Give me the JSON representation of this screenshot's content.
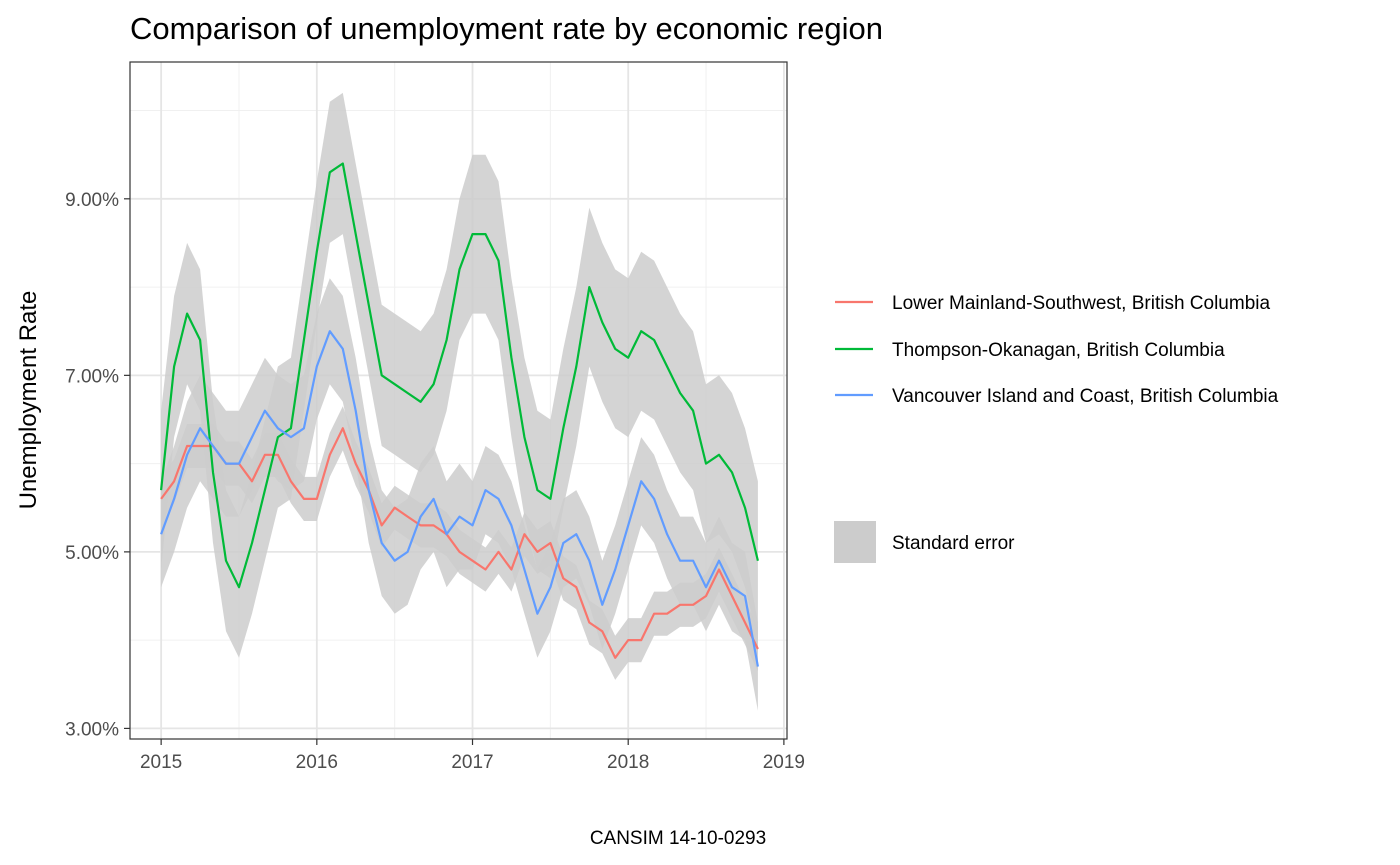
{
  "chart_data": {
    "type": "line",
    "title": "Comparison of unemployment rate by economic region",
    "xlabel": "",
    "ylabel": "Unemployment Rate",
    "caption": "CANSIM 14-10-0293",
    "xlim": [
      2014.8,
      2019.02
    ],
    "ylim": [
      2.88,
      10.55
    ],
    "x_ticks": [
      2015,
      2016,
      2017,
      2018,
      2019
    ],
    "x_tick_labels": [
      "2015",
      "2016",
      "2017",
      "2018",
      "2019"
    ],
    "y_ticks": [
      3,
      5,
      7,
      9
    ],
    "y_tick_labels": [
      "3.00%",
      "5.00%",
      "7.00%",
      "9.00%"
    ],
    "grid": true,
    "legend_position": "right",
    "ribbon_label": "Standard error",
    "ribbon_color": "#cccccc",
    "series": [
      {
        "name": "Lower Mainland-Southwest, British Columbia",
        "color": "#F8766D",
        "values": [
          5.6,
          5.8,
          6.2,
          6.2,
          6.2,
          6.0,
          6.0,
          5.8,
          6.1,
          6.1,
          5.8,
          5.6,
          5.6,
          6.1,
          6.4,
          6.0,
          5.7,
          5.3,
          5.5,
          5.4,
          5.3,
          5.3,
          5.2,
          5.0,
          4.9,
          4.8,
          5.0,
          4.8,
          5.2,
          5.0,
          5.1,
          4.7,
          4.6,
          4.2,
          4.1,
          3.8,
          4.0,
          4.0,
          4.3,
          4.3,
          4.4,
          4.4,
          4.5,
          4.8,
          4.5,
          4.2,
          3.9
        ],
        "se": [
          0.25,
          0.25,
          0.25,
          0.25,
          0.25,
          0.25,
          0.25,
          0.25,
          0.25,
          0.25,
          0.25,
          0.25,
          0.25,
          0.25,
          0.25,
          0.25,
          0.25,
          0.25,
          0.25,
          0.25,
          0.25,
          0.25,
          0.25,
          0.25,
          0.25,
          0.25,
          0.25,
          0.25,
          0.25,
          0.25,
          0.25,
          0.25,
          0.25,
          0.25,
          0.25,
          0.25,
          0.25,
          0.25,
          0.25,
          0.25,
          0.25,
          0.25,
          0.25,
          0.25,
          0.25,
          0.25,
          0.25
        ]
      },
      {
        "name": "Thompson-Okanagan, British Columbia",
        "color": "#00BA38",
        "values": [
          5.7,
          7.1,
          7.7,
          7.4,
          5.9,
          4.9,
          4.6,
          5.1,
          5.7,
          6.3,
          6.4,
          7.4,
          8.4,
          9.3,
          9.4,
          8.6,
          7.8,
          7.0,
          6.9,
          6.8,
          6.7,
          6.9,
          7.4,
          8.2,
          8.6,
          8.6,
          8.3,
          7.2,
          6.3,
          5.7,
          5.6,
          6.4,
          7.1,
          8.0,
          7.6,
          7.3,
          7.2,
          7.5,
          7.4,
          7.1,
          6.8,
          6.6,
          6.0,
          6.1,
          5.9,
          5.5,
          4.9
        ],
        "se": [
          0.9,
          0.8,
          0.8,
          0.8,
          0.8,
          0.8,
          0.8,
          0.8,
          0.8,
          0.8,
          0.8,
          0.8,
          0.8,
          0.8,
          0.8,
          0.8,
          0.8,
          0.8,
          0.8,
          0.8,
          0.8,
          0.8,
          0.8,
          0.8,
          0.9,
          0.9,
          0.9,
          0.9,
          0.9,
          0.9,
          0.9,
          0.9,
          0.9,
          0.9,
          0.9,
          0.9,
          0.9,
          0.9,
          0.9,
          0.9,
          0.9,
          0.9,
          0.9,
          0.9,
          0.9,
          0.9,
          0.9
        ]
      },
      {
        "name": "Vancouver Island and Coast, British Columbia",
        "color": "#619CFF",
        "values": [
          5.2,
          5.6,
          6.1,
          6.4,
          6.2,
          6.0,
          6.0,
          6.3,
          6.6,
          6.4,
          6.3,
          6.4,
          7.1,
          7.5,
          7.3,
          6.6,
          5.7,
          5.1,
          4.9,
          5.0,
          5.4,
          5.6,
          5.2,
          5.4,
          5.3,
          5.7,
          5.6,
          5.3,
          4.8,
          4.3,
          4.6,
          5.1,
          5.2,
          4.9,
          4.4,
          4.8,
          5.3,
          5.8,
          5.6,
          5.2,
          4.9,
          4.9,
          4.6,
          4.9,
          4.6,
          4.5,
          3.7
        ],
        "se": [
          0.6,
          0.6,
          0.6,
          0.6,
          0.6,
          0.6,
          0.6,
          0.6,
          0.6,
          0.6,
          0.6,
          0.6,
          0.6,
          0.6,
          0.6,
          0.6,
          0.6,
          0.6,
          0.6,
          0.6,
          0.6,
          0.6,
          0.6,
          0.6,
          0.5,
          0.5,
          0.5,
          0.5,
          0.5,
          0.5,
          0.5,
          0.5,
          0.5,
          0.5,
          0.5,
          0.5,
          0.5,
          0.5,
          0.5,
          0.5,
          0.5,
          0.5,
          0.5,
          0.5,
          0.5,
          0.5,
          0.5
        ]
      }
    ]
  }
}
